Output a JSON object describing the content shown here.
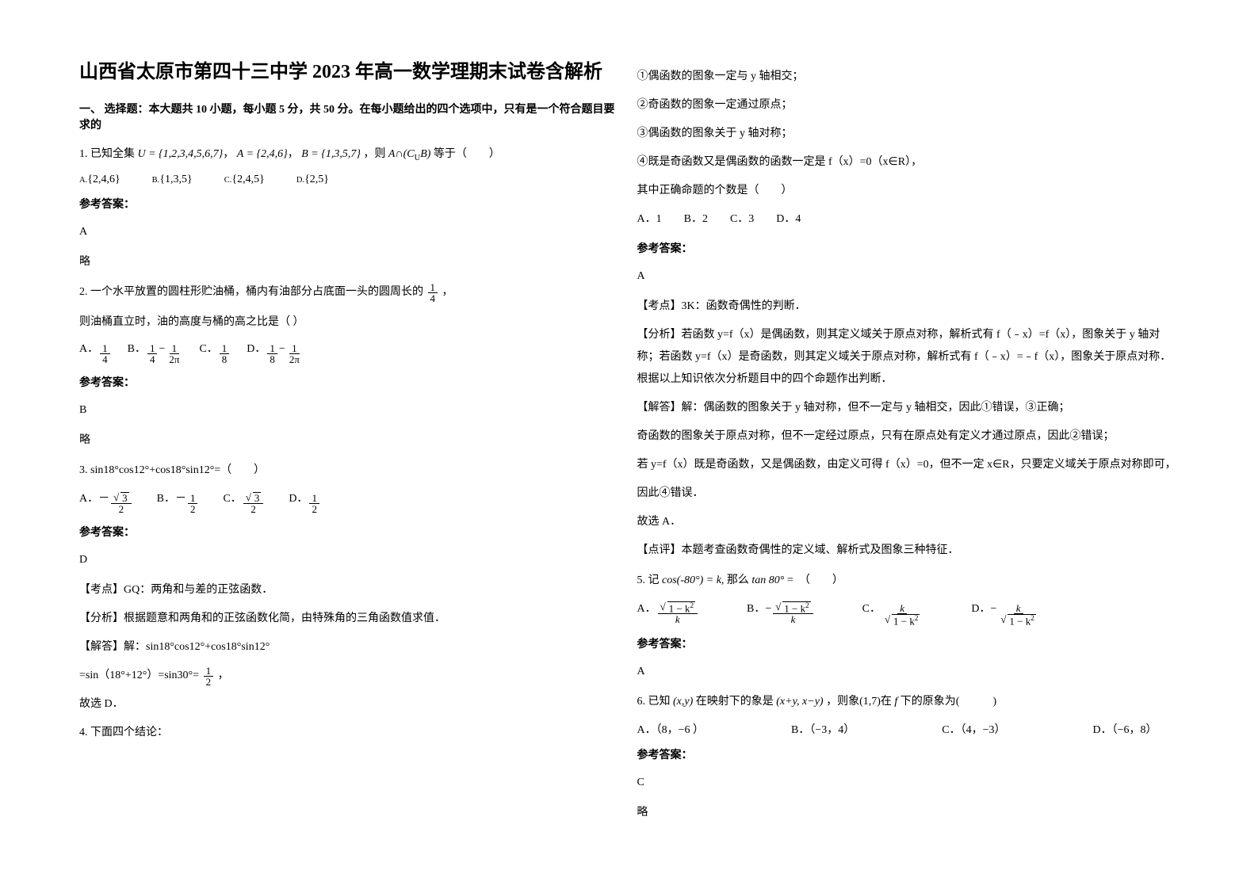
{
  "title": "山西省太原市第四十三中学 2023 年高一数学理期末试卷含解析",
  "section1_header": "一、 选择题：本大题共 10 小题，每小题 5 分，共 50 分。在每小题给出的四个选项中，只有是一个符合题目要求的",
  "q1": {
    "stem_prefix": "1. 已知全集",
    "u_set": "U = {1,2,3,4,5,6,7}",
    "a_set": "A = {2,4,6}",
    "b_set": "B = {1,3,5,7}",
    "stem_mid": "，则",
    "expr": "A∩(C",
    "expr_sub": "U",
    "expr_after": "B)",
    "stem_suffix": "等于（　　）",
    "optA_label": "A.",
    "optA": "{2,4,6}",
    "optB_label": "B.",
    "optB": "{1,3,5}",
    "optC_label": "C.",
    "optC": "{2,4,5}",
    "optD_label": "D.",
    "optD": "{2,5}"
  },
  "answer_label": "参考答案：",
  "q1_answer": "A",
  "q1_note": "略",
  "q2": {
    "line1_a": "2. 一个水平放置的圆柱形贮油桶，桶内有油部分占底面一头的圆周长的",
    "frac_num": "1",
    "frac_den": "4",
    "line1_b": "，",
    "line2": "则油桶直立时，油的高度与桶的高之比是（  ）",
    "optA": "A．",
    "optB": "B．",
    "optC": "C．",
    "optD": "D．"
  },
  "q2_answer": "B",
  "q2_note": "略",
  "q3": {
    "stem": "3. sin18°cos12°+cos18°sin12°=（　　）",
    "optA": "A．－",
    "optB": "B．－",
    "optC": "C．",
    "optD": "D．",
    "sqrt3": "3",
    "two": "2",
    "one": "1"
  },
  "q3_answer": "D",
  "q3_exp1": "【考点】GQ：两角和与差的正弦函数．",
  "q3_exp2": "【分析】根据题意和两角和的正弦函数化简，由特殊角的三角函数值求值．",
  "q3_exp3": "【解答】解：sin18°cos12°+cos18°sin12°",
  "q3_exp4_a": "=sin（18°+12°）=sin30°=",
  "q3_exp4_num": "1",
  "q3_exp4_den": "2",
  "q3_exp4_b": "，",
  "q3_exp5": "故选 D．",
  "q4_stem": "4. 下面四个结论：",
  "q4_p1": "①偶函数的图象一定与 y 轴相交；",
  "q4_p2": "②奇函数的图象一定通过原点；",
  "q4_p3": "③偶函数的图象关于 y 轴对称；",
  "q4_p4": "④既是奇函数又是偶函数的函数一定是 f（x）=0（x∈R），",
  "q4_p5": "其中正确命题的个数是（　　）",
  "q4_opts": "A．1　　B．2　　C．3　　D．4",
  "q4_answer": "A",
  "q4_exp1": "【考点】3K：函数奇偶性的判断．",
  "q4_exp2": "【分析】若函数 y=f（x）是偶函数，则其定义域关于原点对称，解析式有 f（﹣x）=f（x），图象关于 y 轴对称；若函数 y=f（x）是奇函数，则其定义域关于原点对称，解析式有 f（﹣x）=﹣f（x），图象关于原点对称．根据以上知识依次分析题目中的四个命题作出判断．",
  "q4_exp3": "【解答】解：偶函数的图象关于 y 轴对称，但不一定与 y 轴相交，因此①错误，③正确；",
  "q4_exp4": "奇函数的图象关于原点对称，但不一定经过原点，只有在原点处有定义才通过原点，因此②错误；",
  "q4_exp5": "若 y=f（x）既是奇函数，又是偶函数，由定义可得 f（x）=0，但不一定 x∈R，只要定义域关于原点对称即可，",
  "q4_exp6": "因此④错误．",
  "q4_exp7": "故选 A．",
  "q4_exp8": "【点评】本题考查函数奇偶性的定义域、解析式及图象三种特征．",
  "q5": {
    "stem_a": "5. 记",
    "expr1": "cos(-80°) = k,",
    "stem_b": "那么",
    "expr2": "tan 80°",
    "stem_c": "=　（　　）",
    "optA": "A．",
    "optB": "B．",
    "optC": "C．",
    "optD": "D．",
    "k": "k",
    "one_minus_k2": "1 − k"
  },
  "q5_answer": "A",
  "q6": {
    "stem_a": "6. 已知",
    "xy": "(x,y)",
    "stem_b": "在映射下的象是",
    "xyxy": "(x+y, x−y)",
    "stem_c": "，则象(1,7)在",
    "f": "f",
    "stem_d": "下的原象为(　　　)",
    "optA": "A．（8，−6 ）",
    "optB": "B．（−3，4）",
    "optC": "C．（4，−3）",
    "optD": "D．（−6，8）"
  },
  "q6_answer": "C",
  "q6_note": "略"
}
